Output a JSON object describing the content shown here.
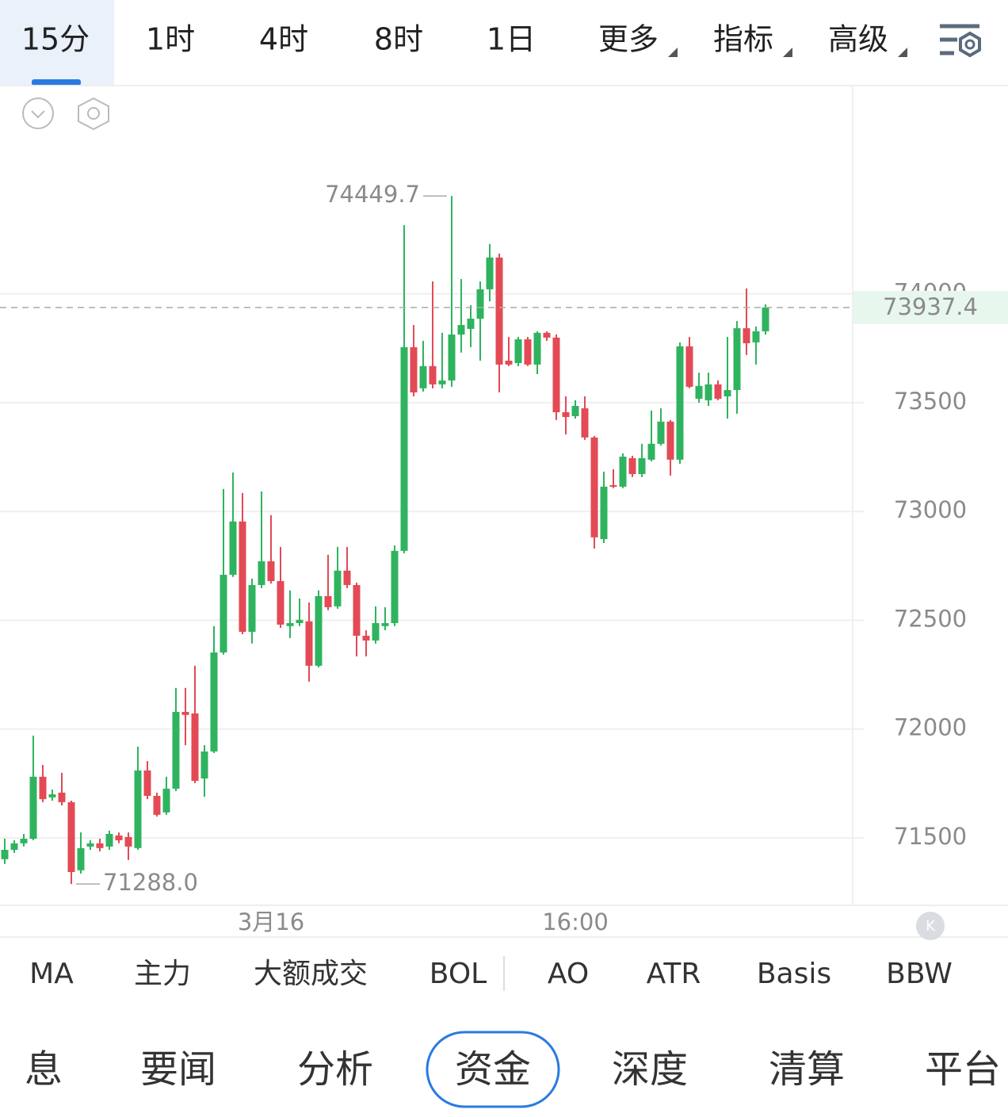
{
  "tabs": {
    "timeframes": [
      "15分",
      "1时",
      "4时",
      "8时",
      "1日"
    ],
    "dropdowns": [
      "更多",
      "指标",
      "高级"
    ]
  },
  "chart_data": {
    "type": "candlestick",
    "up_color": "#2fb35f",
    "down_color": "#e34a55",
    "ylim": [
      71190,
      74957
    ],
    "yticks": [
      71500,
      72000,
      72500,
      73000,
      73500,
      74000
    ],
    "grid": true,
    "categories": [
      null,
      null,
      null,
      null,
      null,
      null,
      null,
      null,
      null,
      null,
      null,
      null,
      null,
      null,
      null,
      null,
      null,
      null,
      null,
      null,
      null,
      null,
      null,
      null,
      null,
      null,
      null,
      null,
      "3月16",
      null,
      null,
      null,
      null,
      null,
      null,
      null,
      null,
      null,
      null,
      null,
      null,
      null,
      null,
      null,
      null,
      null,
      null,
      null,
      null,
      null,
      null,
      null,
      null,
      null,
      null,
      null,
      null,
      null,
      null,
      null,
      "16:00",
      null,
      null,
      null,
      null,
      null,
      null,
      null,
      null,
      null,
      null,
      null,
      null,
      null,
      null,
      null,
      null,
      null,
      null,
      null,
      null
    ],
    "open": [
      71402,
      71445,
      71475,
      71496,
      71781,
      71686,
      71708,
      71664,
      71351,
      71460,
      71475,
      71460,
      71511,
      71504,
      71453,
      71810,
      71693,
      71617,
      71726,
      72079,
      72072,
      71773,
      71897,
      72352,
      72709,
      72954,
      72447,
      72662,
      72771,
      72680,
      72473,
      72487,
      72495,
      72291,
      72611,
      72564,
      72728,
      72662,
      72429,
      72407,
      72473,
      72487,
      72819,
      73755,
      73566,
      73668,
      73584,
      73602,
      73813,
      73839,
      73886,
      74021,
      74167,
      73693,
      73682,
      73791,
      73675,
      73821,
      73799,
      73456,
      73438,
      73474,
      73340,
      72873,
      73121,
      73114,
      73245,
      73172,
      73238,
      73311,
      73413,
      73238,
      73759,
      73518,
      73511,
      73584,
      73529,
      73558,
      73842,
      73777,
      73828
    ],
    "high": [
      71496,
      71489,
      71518,
      71970,
      71835,
      71722,
      71799,
      71671,
      71525,
      71489,
      71496,
      71533,
      71525,
      71525,
      71919,
      71853,
      71708,
      71781,
      72189,
      72189,
      72291,
      71926,
      72473,
      73103,
      73179,
      73085,
      72691,
      73092,
      72983,
      72837,
      72637,
      72600,
      72582,
      72637,
      72801,
      72837,
      72837,
      72673,
      72454,
      72564,
      72560,
      72844,
      74316,
      73857,
      73784,
      74057,
      73821,
      74449.7,
      74068,
      73948,
      74057,
      74229,
      74185,
      73802,
      73802,
      73802,
      73828,
      73828,
      73813,
      73529,
      73511,
      73529,
      73347,
      73183,
      73194,
      73267,
      73256,
      73311,
      73464,
      73474,
      73420,
      73777,
      73802,
      73638,
      73638,
      73602,
      73802,
      73875,
      74025,
      73850,
      73952
    ],
    "low": [
      71380,
      71431,
      71460,
      71489,
      71664,
      71671,
      71649,
      71288.0,
      71336,
      71445,
      71438,
      71445,
      71475,
      71398,
      71445,
      71678,
      71598,
      71606,
      71715,
      71926,
      71751,
      71689,
      71890,
      72342,
      72699,
      72436,
      72393,
      72648,
      72669,
      72465,
      72418,
      72473,
      72218,
      72283,
      72546,
      72553,
      72648,
      72334,
      72334,
      72393,
      72454,
      72473,
      72808,
      73529,
      73551,
      73566,
      73566,
      73573,
      73730,
      73755,
      73693,
      73966,
      73547,
      73668,
      73668,
      73668,
      73631,
      73784,
      73420,
      73354,
      73427,
      73329,
      72830,
      72855,
      73107,
      73107,
      73158,
      73158,
      73230,
      73303,
      73165,
      73219,
      73566,
      73500,
      73485,
      73511,
      73427,
      73449,
      73719,
      73675,
      73813
    ],
    "close": [
      71445,
      71475,
      71496,
      71781,
      71678,
      71700,
      71664,
      71343,
      71453,
      71475,
      71453,
      71518,
      71489,
      71460,
      71810,
      71693,
      71606,
      71726,
      72079,
      72065,
      71762,
      71897,
      72352,
      72709,
      72954,
      72447,
      72662,
      72771,
      72680,
      72480,
      72487,
      72502,
      72291,
      72611,
      72560,
      72728,
      72662,
      72429,
      72407,
      72487,
      72487,
      72819,
      73755,
      73547,
      73668,
      73584,
      73602,
      73813,
      73857,
      73886,
      74021,
      74167,
      73675,
      73675,
      73791,
      73675,
      73821,
      73799,
      73456,
      73434,
      73485,
      73340,
      72881,
      73114,
      73114,
      73252,
      73172,
      73245,
      73311,
      73413,
      73238,
      73759,
      73573,
      73577,
      73584,
      73518,
      73558,
      73842,
      73773,
      73828,
      73937.4
    ],
    "annotations": {
      "high": "74449.7",
      "low": "71288.0",
      "last": "73937.4"
    }
  },
  "indicators": [
    "MA",
    "主力",
    "大额成交",
    "BOL",
    "AO",
    "ATR",
    "Basis",
    "BBW"
  ],
  "bottom_tabs": [
    "息",
    "要闻",
    "分析",
    "资金",
    "深度",
    "清算",
    "平台"
  ]
}
